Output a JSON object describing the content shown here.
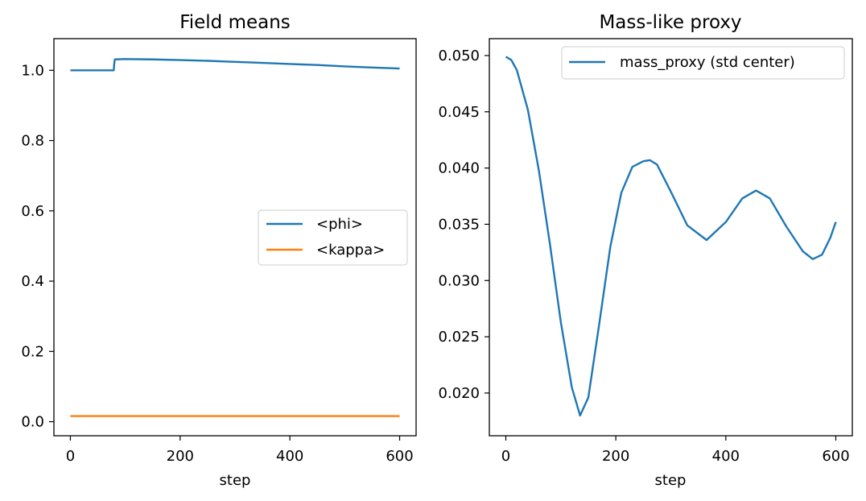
{
  "chart_data": [
    {
      "type": "line",
      "title": "Field means",
      "xlabel": "step",
      "ylabel": "",
      "xlim": [
        -30,
        630
      ],
      "ylim": [
        -0.04,
        1.09
      ],
      "xticks": [
        "0",
        "200",
        "400",
        "600"
      ],
      "xtick_values": [
        0,
        200,
        400,
        600
      ],
      "yticks": [
        "0.0",
        "0.2",
        "0.4",
        "0.6",
        "0.8",
        "1.0"
      ],
      "ytick_values": [
        0.0,
        0.2,
        0.4,
        0.6,
        0.8,
        1.0
      ],
      "grid": false,
      "legend": "center-right",
      "series": [
        {
          "name": "<phi>",
          "color": "#1f77b4",
          "x": [
            0,
            40,
            79,
            80,
            81,
            100,
            150,
            200,
            250,
            300,
            350,
            400,
            450,
            500,
            550,
            600
          ],
          "y": [
            1.0,
            1.0,
            1.0,
            1.02,
            1.031,
            1.032,
            1.031,
            1.029,
            1.027,
            1.024,
            1.021,
            1.018,
            1.015,
            1.011,
            1.008,
            1.005
          ]
        },
        {
          "name": "<kappa>",
          "color": "#ff7f0e",
          "x": [
            0,
            100,
            200,
            300,
            400,
            500,
            600
          ],
          "y": [
            0.016,
            0.016,
            0.016,
            0.016,
            0.016,
            0.016,
            0.016
          ]
        }
      ]
    },
    {
      "type": "line",
      "title": "Mass-like proxy",
      "xlabel": "step",
      "ylabel": "",
      "xlim": [
        -30,
        630
      ],
      "ylim": [
        0.0162,
        0.0515
      ],
      "xticks": [
        "0",
        "200",
        "400",
        "600"
      ],
      "xtick_values": [
        0,
        200,
        400,
        600
      ],
      "yticks": [
        "0.020",
        "0.025",
        "0.030",
        "0.035",
        "0.040",
        "0.045",
        "0.050"
      ],
      "ytick_values": [
        0.02,
        0.025,
        0.03,
        0.035,
        0.04,
        0.045,
        0.05
      ],
      "grid": false,
      "legend": "top-right",
      "series": [
        {
          "name": "mass_proxy (std center)",
          "color": "#1f77b4",
          "x": [
            0,
            10,
            20,
            40,
            60,
            80,
            100,
            120,
            135,
            150,
            170,
            190,
            210,
            230,
            250,
            262,
            275,
            300,
            330,
            365,
            400,
            430,
            455,
            480,
            510,
            540,
            558,
            575,
            590,
            600
          ],
          "y": [
            0.0499,
            0.0496,
            0.0487,
            0.0452,
            0.0398,
            0.0333,
            0.0263,
            0.0205,
            0.018,
            0.0196,
            0.0262,
            0.033,
            0.0378,
            0.0401,
            0.0406,
            0.0407,
            0.0403,
            0.0379,
            0.0349,
            0.0336,
            0.0352,
            0.0373,
            0.038,
            0.0373,
            0.0348,
            0.0326,
            0.0319,
            0.0323,
            0.0338,
            0.0352
          ]
        }
      ]
    }
  ]
}
